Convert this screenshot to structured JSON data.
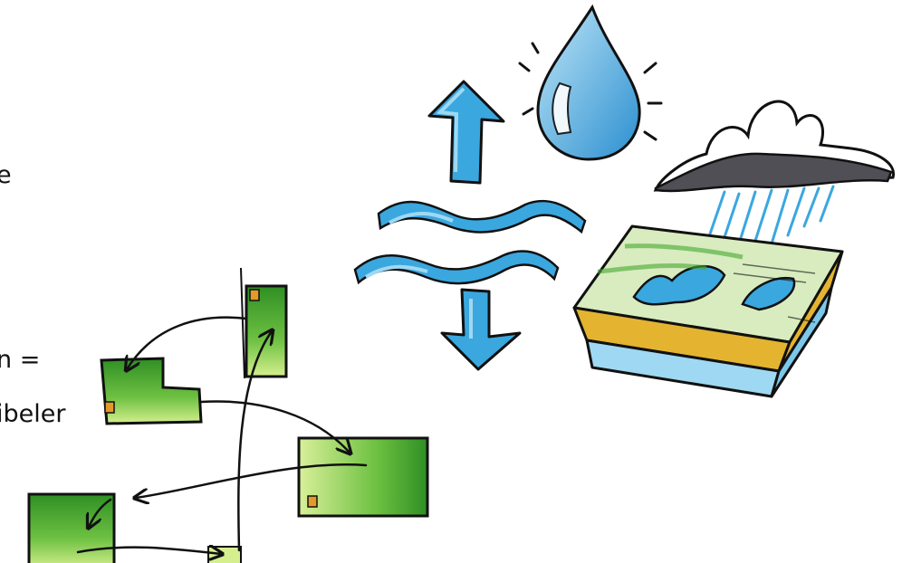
{
  "slide": {
    "text_fragments": [
      "e",
      "n =",
      "ibeler"
    ]
  },
  "illustration": {
    "icons": [
      "up-arrow-icon",
      "water-drop-icon",
      "water-waves-icon",
      "down-arrow-icon",
      "rain-cloud-icon",
      "landscape-block-icon",
      "green-boxes-network-icon"
    ],
    "colors": {
      "water_blue": "#3aa7df",
      "light_blue": "#9fd8f2",
      "green": "#46a82e",
      "light_green": "#cdeb8e",
      "soil_yellow": "#e4b431",
      "cloud_gray": "#4f4f55",
      "outline": "#111111",
      "accent_orange": "#e39a2a"
    }
  }
}
